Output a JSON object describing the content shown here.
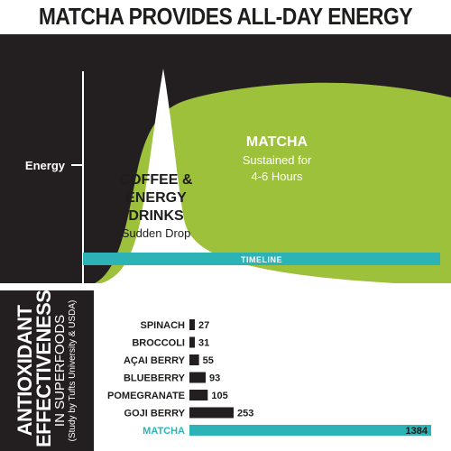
{
  "title": "MATCHA PROVIDES ALL-DAY ENERGY",
  "chart_data": [
    {
      "type": "area",
      "ylabel": "Energy",
      "xlabel": "TIMELINE",
      "series": [
        {
          "name": "COFFEE & ENERGY DRINKS",
          "description": "Sudden Drop"
        },
        {
          "name": "MATCHA",
          "description": "Sustained for 4-6 Hours"
        }
      ],
      "labels": {
        "coffee_lines": [
          "COFFEE &",
          "ENERGY",
          "DRINKS"
        ],
        "coffee_sub": "Sudden Drop",
        "matcha_name": "MATCHA",
        "matcha_lines": [
          "Sustained for",
          "4-6 Hours"
        ]
      }
    },
    {
      "type": "bar",
      "orientation": "horizontal",
      "title_lines": [
        "ANTIOXIDANT",
        "EFFECTIVENESS",
        "IN SUPERFOODS",
        "(Study by Tufts University & USDA)"
      ],
      "categories": [
        "SPINACH",
        "BROCCOLI",
        "AÇAI BERRY",
        "BLUEBERRY",
        "POMEGRANATE",
        "GOJI BERRY",
        "MATCHA"
      ],
      "values": [
        27,
        31,
        55,
        93,
        105,
        253,
        1384
      ],
      "highlight": "MATCHA"
    }
  ],
  "colors": {
    "background": "#231f20",
    "matcha": "#9dc13b",
    "coffee": "#ffffff",
    "teal": "#2bb3b5",
    "text_dark": "#1d1d1b",
    "bar_dark": "#231f20"
  }
}
